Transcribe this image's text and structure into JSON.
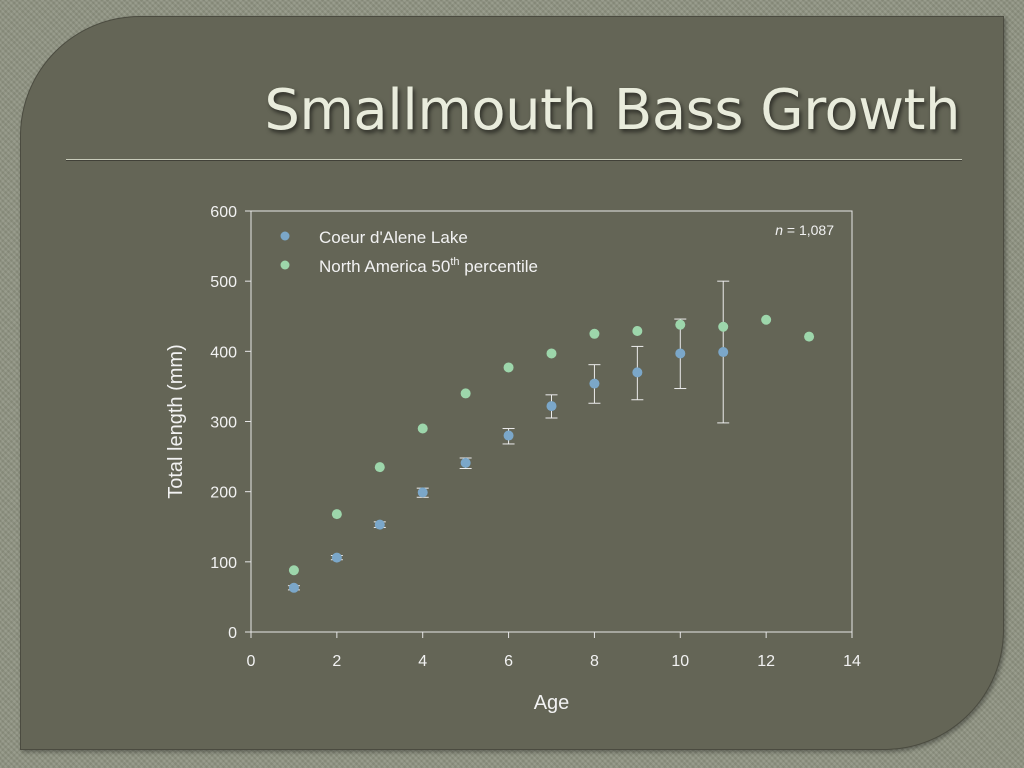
{
  "slide": {
    "title": "Smallmouth Bass Growth"
  },
  "chart_data": {
    "type": "scatter",
    "title": "",
    "xlabel": "Age",
    "ylabel": "Total length (mm)",
    "xlim": [
      0,
      14
    ],
    "ylim": [
      0,
      600
    ],
    "x_ticks": [
      0,
      2,
      4,
      6,
      8,
      10,
      12,
      14
    ],
    "y_ticks": [
      0,
      100,
      200,
      300,
      400,
      500,
      600
    ],
    "grid": false,
    "legend_position": "top-left",
    "annotation": {
      "italic": "n",
      "text": " = 1,087"
    },
    "series": [
      {
        "name": "Coeur d'Alene Lake",
        "color": "#7ba7c9",
        "x": [
          1,
          2,
          3,
          4,
          5,
          6,
          7,
          8,
          9,
          10,
          11
        ],
        "y": [
          63,
          106,
          153,
          199,
          241,
          280,
          322,
          354,
          370,
          397,
          399
        ],
        "err_low": [
          60,
          103,
          149,
          192,
          233,
          268,
          305,
          326,
          331,
          347,
          298
        ],
        "err_high": [
          66,
          109,
          157,
          205,
          248,
          290,
          338,
          381,
          407,
          446,
          500
        ]
      },
      {
        "name": "North America 50",
        "name_sup": "th",
        "name_suffix": " percentile",
        "color": "#9dd6ab",
        "x": [
          1,
          2,
          3,
          4,
          5,
          6,
          7,
          8,
          9,
          10,
          11,
          12,
          13
        ],
        "y": [
          88,
          168,
          235,
          290,
          340,
          377,
          397,
          425,
          429,
          438,
          435,
          445,
          421
        ]
      }
    ]
  }
}
